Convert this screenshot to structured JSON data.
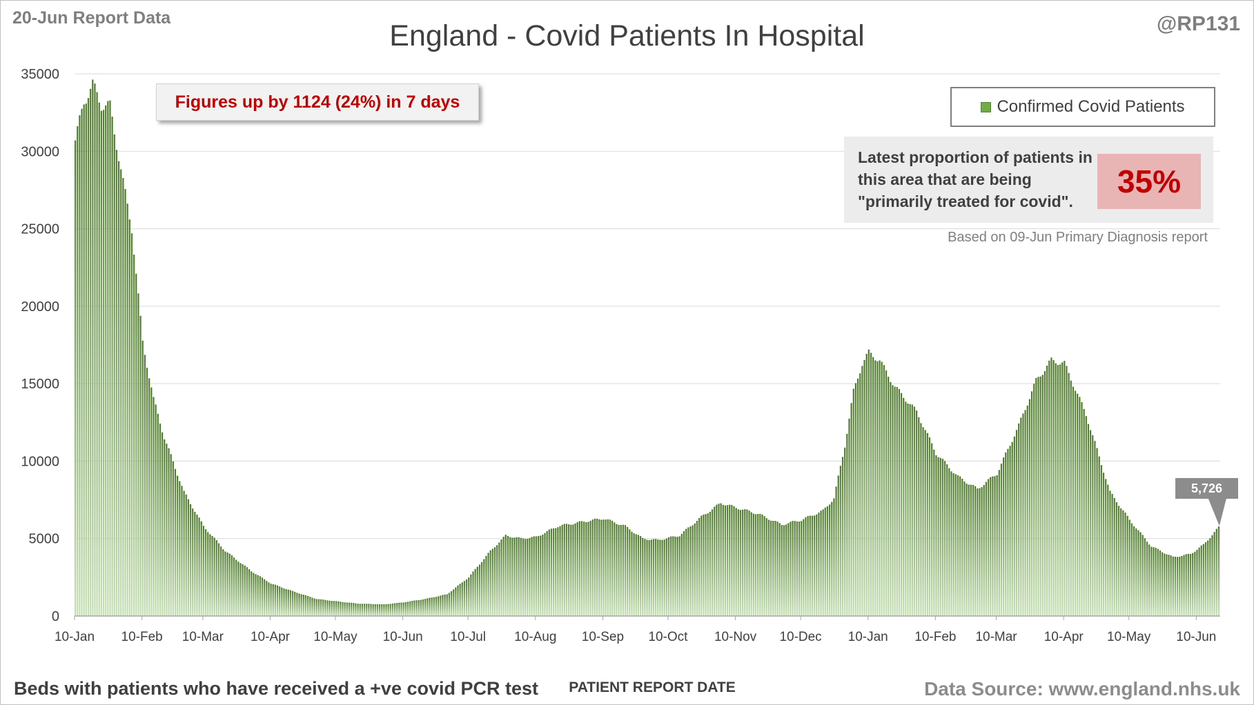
{
  "header": {
    "report_label": "20-Jun Report Data",
    "handle": "@RP131",
    "title": "England - Covid Patients In Hospital"
  },
  "callout": {
    "text": "Figures up by 1124 (24%) in 7 days"
  },
  "legend": {
    "series_label": "Confirmed Covid Patients"
  },
  "proportion_panel": {
    "text": "Latest proportion of patients in this area that are being \"primarily treated for covid\".",
    "value": "35%",
    "note": "Based on 09-Jun Primary Diagnosis report"
  },
  "latest_value_label": "5,726",
  "footer": {
    "left": "Beds with patients who have received a +ve covid PCR test",
    "x_axis_title": "PATIENT REPORT DATE",
    "source": "Data Source: www.england.nhs.uk"
  },
  "colors": {
    "bar_fill": "#70ad47",
    "bar_dark": "#4e7a2c",
    "gridline": "#d9d9d9",
    "axis": "#a6a6a6",
    "callout_text": "#c00000",
    "percentage_box": "#e8b4b4"
  },
  "chart_data": {
    "type": "bar",
    "series_name": "Confirmed Covid Patients",
    "x_start": "2021-01-10",
    "x_end": "2022-06-20",
    "xlabel": "PATIENT REPORT DATE",
    "ylabel": "",
    "ylim": [
      0,
      35000
    ],
    "ytick_labels": [
      "0",
      "5000",
      "10000",
      "15000",
      "20000",
      "25000",
      "30000",
      "35000"
    ],
    "xtick_labels": [
      "10-Jan",
      "10-Feb",
      "10-Mar",
      "10-Apr",
      "10-May",
      "10-Jun",
      "10-Jul",
      "10-Aug",
      "10-Sep",
      "10-Oct",
      "10-Nov",
      "10-Dec",
      "10-Jan",
      "10-Feb",
      "10-Mar",
      "10-Apr",
      "10-May",
      "10-Jun"
    ],
    "grid": true,
    "legend_position": "top-right",
    "keypoints": [
      [
        "2021-01-10",
        30700
      ],
      [
        "2021-01-14",
        33200
      ],
      [
        "2021-01-18",
        34300
      ],
      [
        "2021-01-22",
        33000
      ],
      [
        "2021-01-26",
        32900
      ],
      [
        "2021-02-01",
        28000
      ],
      [
        "2021-02-05",
        25000
      ],
      [
        "2021-02-10",
        17700
      ],
      [
        "2021-02-15",
        14000
      ],
      [
        "2021-02-20",
        11500
      ],
      [
        "2021-03-01",
        8000
      ],
      [
        "2021-03-10",
        5800
      ],
      [
        "2021-03-20",
        4200
      ],
      [
        "2021-04-01",
        2900
      ],
      [
        "2021-04-10",
        2100
      ],
      [
        "2021-04-20",
        1600
      ],
      [
        "2021-05-01",
        1100
      ],
      [
        "2021-05-10",
        950
      ],
      [
        "2021-05-20",
        800
      ],
      [
        "2021-06-01",
        750
      ],
      [
        "2021-06-10",
        880
      ],
      [
        "2021-06-20",
        1100
      ],
      [
        "2021-06-30",
        1400
      ],
      [
        "2021-07-10",
        2500
      ],
      [
        "2021-07-20",
        4200
      ],
      [
        "2021-07-27",
        5200
      ],
      [
        "2021-08-03",
        5000
      ],
      [
        "2021-08-10",
        5100
      ],
      [
        "2021-08-20",
        5800
      ],
      [
        "2021-09-01",
        6100
      ],
      [
        "2021-09-10",
        6300
      ],
      [
        "2021-09-20",
        5800
      ],
      [
        "2021-09-28",
        5000
      ],
      [
        "2021-10-05",
        4900
      ],
      [
        "2021-10-15",
        5200
      ],
      [
        "2021-10-25",
        6400
      ],
      [
        "2021-11-03",
        7300
      ],
      [
        "2021-11-10",
        7000
      ],
      [
        "2021-11-20",
        6600
      ],
      [
        "2021-12-01",
        5900
      ],
      [
        "2021-12-10",
        6200
      ],
      [
        "2021-12-20",
        6800
      ],
      [
        "2021-12-25",
        7600
      ],
      [
        "2021-12-30",
        11000
      ],
      [
        "2022-01-03",
        14500
      ],
      [
        "2022-01-07",
        16300
      ],
      [
        "2022-01-10",
        17000
      ],
      [
        "2022-01-15",
        16500
      ],
      [
        "2022-01-22",
        14800
      ],
      [
        "2022-02-01",
        13200
      ],
      [
        "2022-02-10",
        10500
      ],
      [
        "2022-02-20",
        9000
      ],
      [
        "2022-03-01",
        8200
      ],
      [
        "2022-03-10",
        9200
      ],
      [
        "2022-03-20",
        12300
      ],
      [
        "2022-03-28",
        15200
      ],
      [
        "2022-04-04",
        16500
      ],
      [
        "2022-04-10",
        16300
      ],
      [
        "2022-04-20",
        13000
      ],
      [
        "2022-05-01",
        8000
      ],
      [
        "2022-05-10",
        6200
      ],
      [
        "2022-05-20",
        4500
      ],
      [
        "2022-05-30",
        3800
      ],
      [
        "2022-06-07",
        4000
      ],
      [
        "2022-06-13",
        4600
      ],
      [
        "2022-06-20",
        5726
      ]
    ]
  }
}
